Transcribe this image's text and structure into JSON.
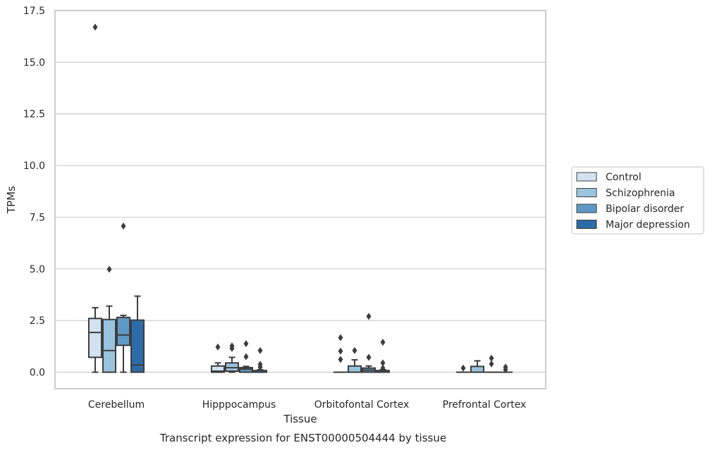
{
  "chart_data": {
    "type": "box",
    "title": "",
    "xlabel": "Tissue",
    "ylabel": "TPMs",
    "caption": "Transcript expression for ENST00000504444 by tissue",
    "ylim": [
      -0.8,
      17.5
    ],
    "yticks": [
      "0.0",
      "2.5",
      "5.0",
      "7.5",
      "10.0",
      "12.5",
      "15.0",
      "17.5"
    ],
    "grid": "horizontal",
    "legend_position": "right",
    "categories": [
      "Cerebellum",
      "Hipppocampus",
      "Orbitofontal Cortex",
      "Prefrontal Cortex"
    ],
    "series": [
      {
        "name": "Control",
        "color": "#d1e2f2",
        "boxes": [
          {
            "whislo": 0.0,
            "q1": 0.72,
            "med": 1.92,
            "q3": 2.6,
            "whishi": 3.12,
            "fliers": [
              16.7
            ]
          },
          {
            "whislo": 0.0,
            "q1": 0.0,
            "med": 0.05,
            "q3": 0.3,
            "whishi": 0.45,
            "fliers": [
              1.22
            ]
          },
          {
            "whislo": 0.0,
            "q1": 0.0,
            "med": 0.0,
            "q3": 0.0,
            "whishi": 0.0,
            "fliers": [
              0.62,
              1.02,
              1.67
            ]
          },
          {
            "whislo": 0.0,
            "q1": 0.0,
            "med": 0.0,
            "q3": 0.0,
            "whishi": 0.0,
            "fliers": [
              0.2
            ]
          }
        ]
      },
      {
        "name": "Schizophrenia",
        "color": "#9ac3de",
        "boxes": [
          {
            "whislo": 0.0,
            "q1": 0.0,
            "med": 1.05,
            "q3": 2.55,
            "whishi": 3.2,
            "fliers": [
              4.98
            ]
          },
          {
            "whislo": 0.0,
            "q1": 0.05,
            "med": 0.22,
            "q3": 0.45,
            "whishi": 0.72,
            "fliers": [
              1.15,
              1.27
            ]
          },
          {
            "whislo": 0.0,
            "q1": 0.0,
            "med": 0.0,
            "q3": 0.3,
            "whishi": 0.6,
            "fliers": [
              1.05
            ]
          },
          {
            "whislo": 0.0,
            "q1": 0.0,
            "med": 0.0,
            "q3": 0.28,
            "whishi": 0.55,
            "fliers": []
          }
        ]
      },
      {
        "name": "Bipolar disorder",
        "color": "#5d99c6",
        "boxes": [
          {
            "whislo": 0.0,
            "q1": 1.3,
            "med": 1.8,
            "q3": 2.65,
            "whishi": 2.75,
            "fliers": [
              7.07
            ]
          },
          {
            "whislo": 0.0,
            "q1": 0.0,
            "med": 0.15,
            "q3": 0.22,
            "whishi": 0.28,
            "fliers": [
              0.75,
              1.38
            ]
          },
          {
            "whislo": 0.0,
            "q1": 0.0,
            "med": 0.1,
            "q3": 0.2,
            "whishi": 0.3,
            "fliers": [
              0.72,
              2.7
            ]
          },
          {
            "whislo": 0.0,
            "q1": 0.0,
            "med": 0.0,
            "q3": 0.0,
            "whishi": 0.0,
            "fliers": [
              0.4,
              0.68
            ]
          }
        ]
      },
      {
        "name": "Major depression",
        "color": "#2b6ca8",
        "boxes": [
          {
            "whislo": 0.0,
            "q1": 0.0,
            "med": 0.35,
            "q3": 2.52,
            "whishi": 3.68,
            "fliers": []
          },
          {
            "whislo": 0.0,
            "q1": 0.0,
            "med": 0.0,
            "q3": 0.08,
            "whishi": 0.12,
            "fliers": [
              0.25,
              0.38,
              1.05
            ]
          },
          {
            "whislo": 0.0,
            "q1": 0.0,
            "med": 0.0,
            "q3": 0.08,
            "whishi": 0.12,
            "fliers": [
              0.2,
              0.45,
              1.45
            ]
          },
          {
            "whislo": 0.0,
            "q1": 0.0,
            "med": 0.0,
            "q3": 0.0,
            "whishi": 0.0,
            "fliers": [
              0.12,
              0.25
            ]
          }
        ]
      }
    ]
  }
}
